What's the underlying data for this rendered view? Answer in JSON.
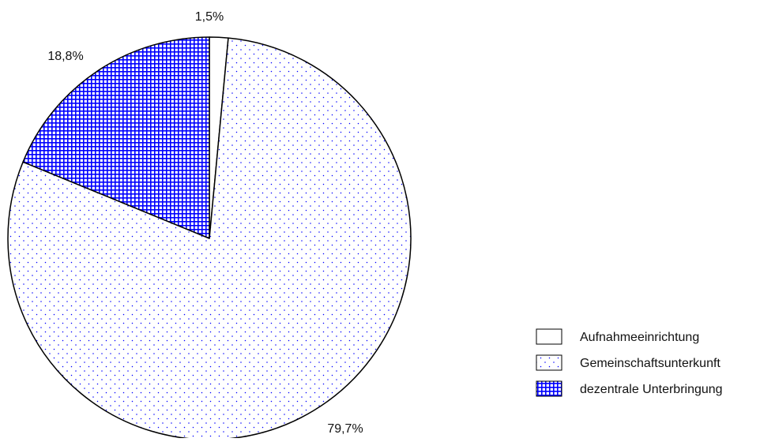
{
  "chart_data": {
    "type": "pie",
    "title": "",
    "slices": [
      {
        "label": "Aufnahmeeinrichtung",
        "value": 1.5,
        "display": "1,5%",
        "fill": "#ffffff",
        "pattern": "none"
      },
      {
        "label": "Gemeinschaftsunterkunft",
        "value": 79.7,
        "display": "79,7%",
        "fill": "#ffffff",
        "pattern": "dots"
      },
      {
        "label": "dezentrale Unterbringung",
        "value": 18.8,
        "display": "18,8%",
        "fill": "#ffffff",
        "pattern": "grid"
      }
    ],
    "start": "top",
    "direction": "clockwise",
    "legend_position": "bottom-right",
    "colors": {
      "outline": "#000000",
      "pattern": "#0000ff",
      "background": "#ffffff"
    }
  }
}
